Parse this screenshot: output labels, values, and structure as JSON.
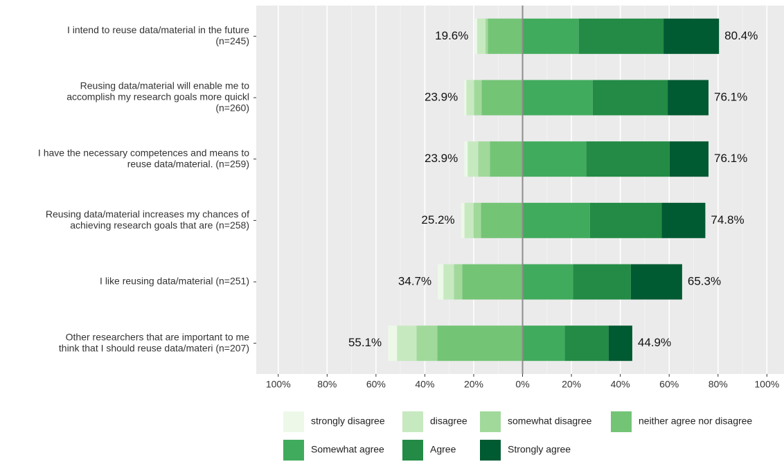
{
  "chart_data": {
    "type": "likert",
    "categories": [
      [
        "I intend to reuse data/material in the future",
        "(n=245)"
      ],
      [
        "Reusing data/material will enable me to",
        "accomplish my research goals more quickl",
        "(n=260)"
      ],
      [
        "I have the necessary competences and means to",
        "reuse data/material. (n=259)"
      ],
      [
        "Reusing data/material increases my chances of",
        "achieving research goals that are (n=258)"
      ],
      [
        "I like reusing data/material (n=251)"
      ],
      [
        "Other researchers that are important to me",
        "think that I should reuse data/materi (n=207)"
      ]
    ],
    "series": [
      {
        "name": "strongly disagree",
        "color": "#edf8e9",
        "values": [
          1.0,
          0.9,
          1.4,
          1.4,
          2.3,
          3.7
        ]
      },
      {
        "name": "disagree",
        "color": "#c7e9c0",
        "values": [
          3.4,
          3.1,
          4.3,
          3.7,
          4.3,
          8.0
        ]
      },
      {
        "name": "somewhat disagree",
        "color": "#a1d99b",
        "values": [
          1.0,
          3.1,
          4.8,
          3.1,
          3.4,
          8.5
        ]
      },
      {
        "name": "neither agree nor disagree",
        "color": "#74c476",
        "values": [
          14.2,
          16.8,
          13.4,
          17.0,
          24.7,
          34.9
        ]
      },
      {
        "name": "Somewhat agree",
        "color": "#41ab5d",
        "values": [
          23.0,
          28.7,
          26.1,
          27.6,
          20.7,
          17.3
        ]
      },
      {
        "name": "Agree",
        "color": "#238b45",
        "values": [
          34.7,
          30.7,
          34.1,
          29.3,
          23.6,
          17.9
        ]
      },
      {
        "name": "Strongly agree",
        "color": "#005a32",
        "values": [
          22.7,
          16.7,
          15.9,
          17.9,
          21.0,
          9.7
        ]
      }
    ],
    "left_totals": {
      "values": [
        19.6,
        23.9,
        23.9,
        25.2,
        34.7,
        55.1
      ],
      "value_labels": [
        "19.6%",
        "23.9%",
        "23.9%",
        "25.2%",
        "34.7%",
        "55.1%"
      ]
    },
    "right_totals": {
      "values": [
        80.4,
        76.1,
        76.1,
        74.8,
        65.3,
        44.9
      ],
      "value_labels": [
        "80.4%",
        "76.1%",
        "76.1%",
        "74.8%",
        "65.3%",
        "44.9%"
      ]
    },
    "xlim": [
      -109,
      107
    ],
    "xticks": [
      {
        "value": -100,
        "label": "100%"
      },
      {
        "value": -80,
        "label": "80%"
      },
      {
        "value": -60,
        "label": "60%"
      },
      {
        "value": -40,
        "label": "40%"
      },
      {
        "value": -20,
        "label": "20%"
      },
      {
        "value": 0,
        "label": "0%"
      },
      {
        "value": 20,
        "label": "20%"
      },
      {
        "value": 40,
        "label": "40%"
      },
      {
        "value": 60,
        "label": "60%"
      },
      {
        "value": 80,
        "label": "80%"
      },
      {
        "value": 100,
        "label": "100%"
      }
    ],
    "grid": true
  }
}
